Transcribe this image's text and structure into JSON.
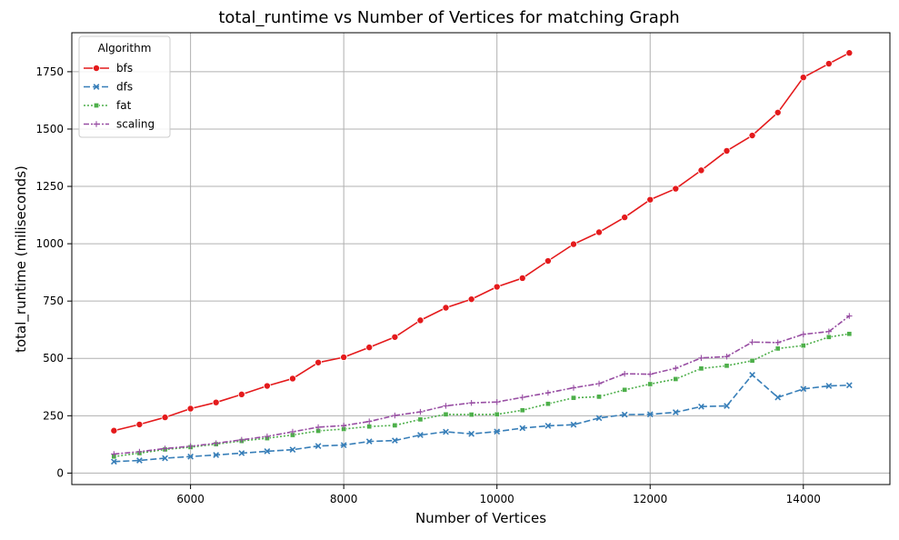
{
  "chart_data": {
    "type": "line",
    "title": "total_runtime vs Number of Vertices for matching Graph",
    "xlabel": "Number of Vertices",
    "ylabel": "total_runtime (miliseconds)",
    "xlim": [
      4450,
      15130
    ],
    "ylim": [
      -50,
      1920
    ],
    "xticks": [
      6000,
      8000,
      10000,
      12000,
      14000
    ],
    "yticks": [
      0,
      250,
      500,
      750,
      1000,
      1250,
      1500,
      1750
    ],
    "grid": true,
    "legend": {
      "title": "Algorithm",
      "placement": "top-left"
    },
    "x": [
      5000,
      5333,
      5667,
      6000,
      6333,
      6667,
      7000,
      7333,
      7667,
      8000,
      8333,
      8667,
      9000,
      9333,
      9667,
      10000,
      10333,
      10667,
      11000,
      11333,
      11667,
      12000,
      12333,
      12667,
      13000,
      13333,
      13667,
      14000,
      14333,
      14600
    ],
    "series": [
      {
        "name": "bfs",
        "color": "#e41a1c",
        "marker": "circle",
        "dash": "solid",
        "values": [
          185,
          212,
          243,
          281,
          308,
          343,
          380,
          412,
          482,
          505,
          548,
          593,
          666,
          721,
          758,
          812,
          850,
          925,
          998,
          1050,
          1115,
          1192,
          1240,
          1320,
          1405,
          1472,
          1572,
          1725,
          1785,
          1832
        ]
      },
      {
        "name": "dfs",
        "color": "#377eb8",
        "marker": "x",
        "dash": "dashed",
        "values": [
          50,
          55,
          65,
          72,
          79,
          87,
          95,
          102,
          118,
          122,
          138,
          142,
          166,
          180,
          171,
          181,
          196,
          206,
          211,
          240,
          255,
          256,
          265,
          290,
          293,
          428,
          330,
          367,
          380,
          383
        ]
      },
      {
        "name": "fat",
        "color": "#4daf4a",
        "marker": "square",
        "dash": "dotted",
        "values": [
          72,
          87,
          103,
          113,
          126,
          140,
          152,
          166,
          184,
          192,
          203,
          208,
          234,
          256,
          255,
          256,
          274,
          302,
          328,
          333,
          363,
          388,
          410,
          456,
          468,
          490,
          543,
          556,
          593,
          607
        ]
      },
      {
        "name": "scaling",
        "color": "#984ea3",
        "marker": "plus",
        "dash": "dashdot",
        "values": [
          83,
          93,
          107,
          117,
          130,
          145,
          160,
          180,
          200,
          207,
          225,
          251,
          267,
          293,
          306,
          310,
          330,
          350,
          372,
          390,
          433,
          431,
          457,
          502,
          508,
          571,
          569,
          605,
          617,
          685
        ]
      }
    ]
  }
}
